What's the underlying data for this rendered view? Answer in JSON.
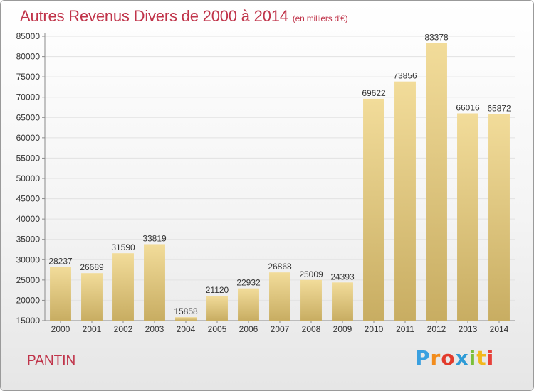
{
  "header": {
    "title": "Autres Revenus Divers de 2000 à 2014",
    "subtitle": "(en milliers d'€)"
  },
  "footer": {
    "city": "PANTIN",
    "logo_text": "Proxiti"
  },
  "colors": {
    "title": "#c0344a",
    "bar_light": "#f2dc9a",
    "bar_dark": "#c8ad62",
    "grid": "#e2e2e2",
    "axis": "#8a8a8a"
  },
  "chart_data": {
    "type": "bar",
    "categories": [
      "2000",
      "2001",
      "2002",
      "2003",
      "2004",
      "2005",
      "2006",
      "2007",
      "2008",
      "2009",
      "2010",
      "2011",
      "2012",
      "2013",
      "2014"
    ],
    "values": [
      28237,
      26689,
      31590,
      33819,
      15858,
      21120,
      22932,
      26868,
      25009,
      24393,
      69622,
      73856,
      83378,
      66016,
      65872
    ],
    "data_labels": [
      "28237",
      "26689",
      "31590",
      "33819",
      "15858",
      "21120",
      "22932",
      "26868",
      "25009",
      "24393",
      "69622",
      "73856",
      "83378",
      "66016",
      "65872"
    ],
    "ylim": [
      15000,
      85000
    ],
    "yticks": [
      15000,
      20000,
      25000,
      30000,
      35000,
      40000,
      45000,
      50000,
      55000,
      60000,
      65000,
      70000,
      75000,
      80000,
      85000
    ],
    "grid": true,
    "legend": "none"
  }
}
